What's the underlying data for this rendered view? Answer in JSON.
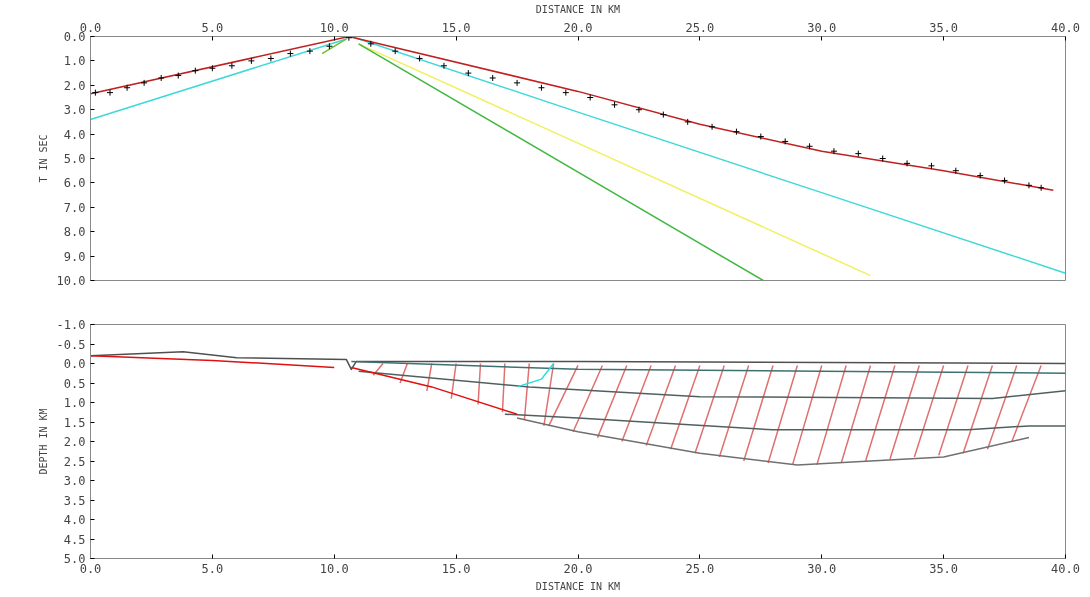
{
  "chart_data": [
    {
      "type": "line",
      "xlabel": "DISTANCE IN KM",
      "ylabel": "T IN SEC",
      "xlim": [
        0,
        40
      ],
      "ylim": [
        10,
        0
      ],
      "xticks": [
        {
          "value": 0,
          "label": "0.0"
        },
        {
          "value": 5,
          "label": "5.0"
        },
        {
          "value": 10,
          "label": "10.0"
        },
        {
          "value": 15,
          "label": "15.0"
        },
        {
          "value": 20,
          "label": "20.0"
        },
        {
          "value": 25,
          "label": "25.0"
        },
        {
          "value": 30,
          "label": "30.0"
        },
        {
          "value": 35,
          "label": "35.0"
        },
        {
          "value": 40,
          "label": "40.0"
        }
      ],
      "yticks": [
        {
          "value": 0,
          "label": "0.0"
        },
        {
          "value": 1,
          "label": "1.0"
        },
        {
          "value": 2,
          "label": "2.0"
        },
        {
          "value": 3,
          "label": "3.0"
        },
        {
          "value": 4,
          "label": "4.0"
        },
        {
          "value": 5,
          "label": "5.0"
        },
        {
          "value": 6,
          "label": "6.0"
        },
        {
          "value": 7,
          "label": "7.0"
        },
        {
          "value": 8,
          "label": "8.0"
        },
        {
          "value": 9,
          "label": "9.0"
        },
        {
          "value": 10,
          "label": "10.0"
        }
      ],
      "grid": false,
      "line_style": "solid",
      "series": [
        {
          "color": "#40d8d8",
          "x": [
            0,
            10.5
          ],
          "values": [
            3.4,
            0.1
          ]
        },
        {
          "color": "#40d8d8",
          "x": [
            10.7,
            20,
            30,
            40
          ],
          "values": [
            0,
            3.1,
            6.4,
            9.7
          ]
        },
        {
          "color": "#f0f060",
          "x": [
            11,
            32
          ],
          "values": [
            0.3,
            9.8
          ]
        },
        {
          "color": "#40b840",
          "x": [
            11,
            27.6
          ],
          "values": [
            0.3,
            10
          ]
        },
        {
          "color": "#70c030",
          "x": [
            9.5,
            10.5
          ],
          "values": [
            0.7,
            0.1
          ]
        },
        {
          "color": "#c02020",
          "x": [
            0,
            10.6
          ],
          "values": [
            2.35,
            0
          ]
        },
        {
          "color": "#c02020",
          "x": [
            10.6,
            20,
            25,
            30,
            35,
            39.5
          ],
          "values": [
            0,
            2.25,
            3.6,
            4.7,
            5.5,
            6.3
          ]
        },
        {
          "type": "scatter",
          "marker": "cross",
          "color": "#000000",
          "x": [
            0.2,
            0.8,
            1.5,
            2.2,
            2.9,
            3.6,
            4.3,
            5.0,
            5.8,
            6.6,
            7.4,
            8.2,
            9.0,
            9.8,
            10.6,
            11.5,
            12.5,
            13.5,
            14.5,
            15.5,
            16.5,
            17.5,
            18.5,
            19.5,
            20.5,
            21.5,
            22.5,
            23.5,
            24.5,
            25.5,
            26.5,
            27.5,
            28.5,
            29.5,
            30.5,
            31.5,
            32.5,
            33.5,
            34.5,
            35.5,
            36.5,
            37.5,
            38.5,
            39.0
          ],
          "values": [
            2.3,
            2.3,
            2.1,
            1.9,
            1.7,
            1.6,
            1.4,
            1.3,
            1.2,
            1.0,
            0.9,
            0.7,
            0.6,
            0.4,
            0.05,
            0.3,
            0.6,
            0.9,
            1.2,
            1.5,
            1.7,
            1.9,
            2.1,
            2.3,
            2.5,
            2.8,
            3.0,
            3.2,
            3.5,
            3.7,
            3.9,
            4.1,
            4.3,
            4.5,
            4.7,
            4.8,
            5.0,
            5.2,
            5.3,
            5.5,
            5.7,
            5.9,
            6.1,
            6.2
          ]
        }
      ]
    },
    {
      "type": "line",
      "xlabel": "DISTANCE IN KM",
      "ylabel": "DEPTH IN KM",
      "xlim": [
        0,
        40
      ],
      "ylim": [
        5,
        -1
      ],
      "xticks": [
        {
          "value": 0,
          "label": "0.0"
        },
        {
          "value": 5,
          "label": "5.0"
        },
        {
          "value": 10,
          "label": "10.0"
        },
        {
          "value": 15,
          "label": "15.0"
        },
        {
          "value": 20,
          "label": "20.0"
        },
        {
          "value": 25,
          "label": "25.0"
        },
        {
          "value": 30,
          "label": "30.0"
        },
        {
          "value": 35,
          "label": "35.0"
        },
        {
          "value": 40,
          "label": "40.0"
        }
      ],
      "yticks": [
        {
          "value": -1,
          "label": "-1.0"
        },
        {
          "value": -0.5,
          "label": "-0.5"
        },
        {
          "value": 0,
          "label": "0.0"
        },
        {
          "value": 0.5,
          "label": "0.5"
        },
        {
          "value": 1,
          "label": "1.0"
        },
        {
          "value": 1.5,
          "label": "1.5"
        },
        {
          "value": 2,
          "label": "2.0"
        },
        {
          "value": 2.5,
          "label": "2.5"
        },
        {
          "value": 3,
          "label": "3.0"
        },
        {
          "value": 3.5,
          "label": "3.5"
        },
        {
          "value": 4,
          "label": "4.0"
        },
        {
          "value": 4.5,
          "label": "4.5"
        },
        {
          "value": 5,
          "label": "5.0"
        }
      ],
      "grid": false,
      "line_style": "solid",
      "series": [
        {
          "color": "#e07070",
          "x": [
            20,
            18.8,
            null,
            21,
            19.8,
            null,
            22,
            20.8,
            null,
            23,
            21.8,
            null,
            24,
            22.8,
            null,
            25,
            23.8,
            null,
            26,
            24.8,
            null,
            27,
            25.8,
            null,
            28,
            26.8,
            null,
            29,
            27.8,
            null,
            30,
            28.8,
            null,
            31,
            29.8,
            null,
            32,
            30.8,
            null,
            33,
            31.8,
            null,
            34,
            32.8,
            null,
            35,
            33.8,
            null,
            36,
            34.8,
            null,
            37,
            35.8,
            null,
            38,
            36.8,
            null,
            39,
            37.8
          ],
          "values": [
            0.05,
            1.6,
            null,
            0.05,
            1.75,
            null,
            0.05,
            1.9,
            null,
            0.05,
            2.0,
            null,
            0.05,
            2.1,
            null,
            0.05,
            2.2,
            null,
            0.05,
            2.3,
            null,
            0.05,
            2.4,
            null,
            0.05,
            2.5,
            null,
            0.05,
            2.55,
            null,
            0.05,
            2.6,
            null,
            0.05,
            2.6,
            null,
            0.05,
            2.55,
            null,
            0.05,
            2.5,
            null,
            0.05,
            2.45,
            null,
            0.05,
            2.4,
            null,
            0.05,
            2.35,
            null,
            0.05,
            2.3,
            null,
            0.05,
            2.2,
            null,
            0.05,
            2.0
          ]
        },
        {
          "color": "#e07070",
          "x": [
            12,
            11.6,
            null,
            13,
            12.7,
            null,
            14,
            13.8,
            null,
            15,
            14.8,
            null,
            16,
            15.9,
            null,
            17,
            16.9,
            null,
            18,
            17.8,
            null,
            19,
            18.6
          ],
          "values": [
            0.0,
            0.3,
            null,
            0.0,
            0.5,
            null,
            0.0,
            0.7,
            null,
            0.0,
            0.9,
            null,
            0.0,
            1.05,
            null,
            0.0,
            1.25,
            null,
            0.0,
            1.45,
            null,
            0.0,
            1.6
          ]
        },
        {
          "color": "#505050",
          "x": [
            0,
            3.8,
            6,
            10.5,
            10.7,
            10.9,
            20,
            40
          ],
          "values": [
            -0.2,
            -0.3,
            -0.15,
            -0.1,
            0.15,
            -0.05,
            -0.05,
            0.0
          ]
        },
        {
          "color": "#407070",
          "x": [
            10.7,
            20,
            30,
            40
          ],
          "values": [
            -0.05,
            0.15,
            0.2,
            0.25
          ]
        },
        {
          "color": "#506060",
          "x": [
            11,
            18,
            25,
            37,
            40
          ],
          "values": [
            0.2,
            0.6,
            0.85,
            0.9,
            0.7
          ]
        },
        {
          "color": "#506060",
          "x": [
            17,
            20,
            28,
            36,
            38.5,
            40
          ],
          "values": [
            1.3,
            1.4,
            1.7,
            1.7,
            1.6,
            1.6
          ]
        },
        {
          "color": "#707070",
          "x": [
            17.5,
            20,
            25,
            29,
            35,
            38.5
          ],
          "values": [
            1.4,
            1.75,
            2.3,
            2.6,
            2.4,
            1.9
          ]
        },
        {
          "color": "#e01010",
          "x": [
            0,
            5,
            10
          ],
          "values": [
            -0.2,
            -0.08,
            0.1
          ]
        },
        {
          "color": "#e01010",
          "x": [
            10.7,
            14,
            17.5
          ],
          "values": [
            0.1,
            0.6,
            1.3
          ]
        },
        {
          "color": "#20e0e0",
          "x": [
            17.5,
            18.5,
            19
          ],
          "values": [
            0.6,
            0.4,
            0.0
          ]
        }
      ]
    }
  ]
}
